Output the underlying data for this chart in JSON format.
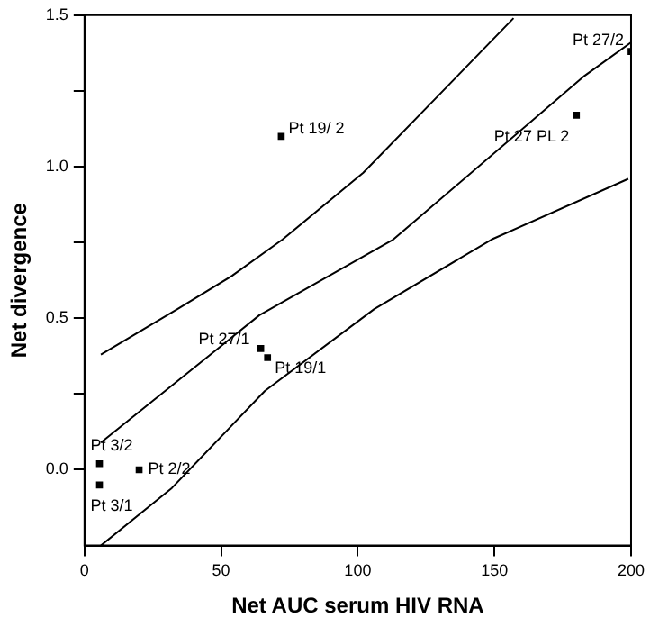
{
  "chart_data": {
    "type": "scatter",
    "xlabel": "Net AUC serum HIV RNA",
    "ylabel": "Net divergence",
    "xlim": [
      0,
      200
    ],
    "xticks": [
      0,
      50,
      100,
      150,
      200
    ],
    "ylim": [
      -0.25,
      1.5
    ],
    "yticks": [
      {
        "value": 0,
        "label": "0.0"
      },
      {
        "value": 0.25,
        "label": null
      },
      {
        "value": 0.5,
        "label": "0.5"
      },
      {
        "value": 0.75,
        "label": null
      },
      {
        "value": 1,
        "label": "1.0"
      },
      {
        "value": 1.25,
        "label": null
      },
      {
        "value": 1.5,
        "label": "1.5"
      }
    ],
    "grid": false,
    "legend": false,
    "series": [
      {
        "marker": "square",
        "color": "#000000",
        "x": [
          72,
          200,
          180,
          64.5,
          67,
          5.5,
          5.5,
          20
        ],
        "values": [
          1.1,
          1.38,
          1.17,
          0.4,
          0.37,
          0.02,
          -0.05,
          0.0
        ]
      },
      {
        "type": "line",
        "color": "#000000",
        "x": [
          6,
          34,
          54,
          72.5,
          102,
          129,
          157
        ],
        "values": [
          0.38,
          0.53,
          0.64,
          0.76,
          0.98,
          1.23,
          1.49
        ]
      },
      {
        "type": "line",
        "color": "#000000",
        "x": [
          6,
          64,
          113,
          183,
          200
        ],
        "values": [
          0.09,
          0.51,
          0.76,
          1.3,
          1.41
        ]
      },
      {
        "type": "line",
        "color": "#000000",
        "x": [
          6,
          32,
          66,
          106,
          149,
          199
        ],
        "values": [
          -0.25,
          -0.06,
          0.26,
          0.53,
          0.76,
          0.96
        ]
      }
    ],
    "annotations": [
      {
        "text": "Pt 19/ 2",
        "x": 72,
        "y": 1.1
      },
      {
        "text": "Pt 27/2",
        "x": 200,
        "y": 1.38
      },
      {
        "text": "Pt 27 PL 2",
        "x": 180,
        "y": 1.17
      },
      {
        "text": "Pt 27/1",
        "x": 64.5,
        "y": 0.4
      },
      {
        "text": "Pt 19/1",
        "x": 67,
        "y": 0.37
      },
      {
        "text": "Pt 3/2",
        "x": 5.5,
        "y": 0.02
      },
      {
        "text": "Pt 3/1",
        "x": 5.5,
        "y": -0.05
      },
      {
        "text": "Pt 2/2",
        "x": 20,
        "y": 0.0
      }
    ]
  }
}
